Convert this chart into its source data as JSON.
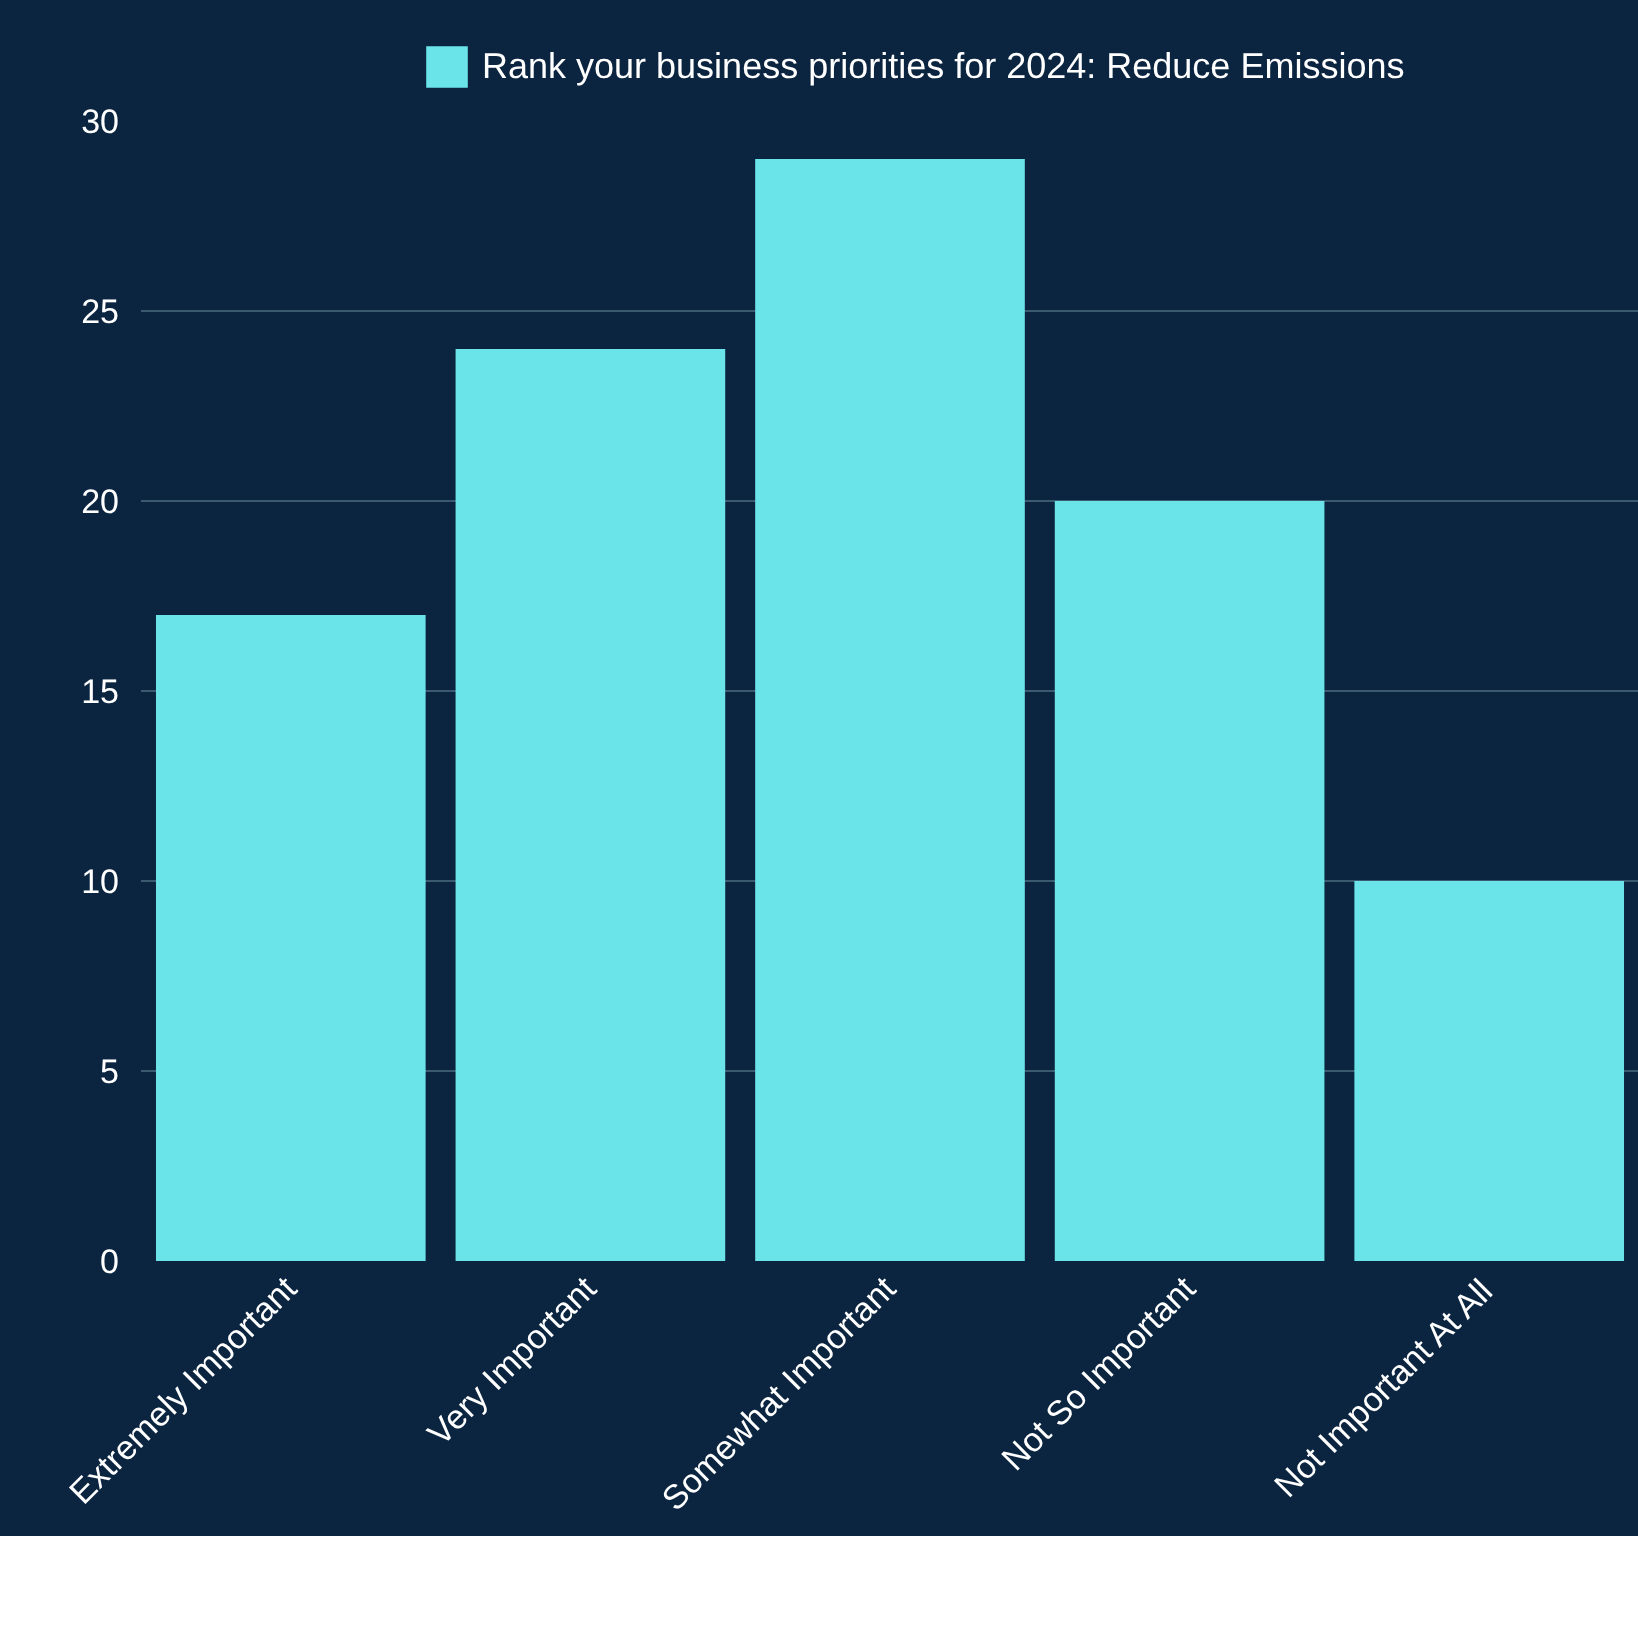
{
  "chart_data": {
    "type": "bar",
    "categories": [
      "Extremely Important",
      "Very Important",
      "Somewhat Important",
      "Not So Important",
      "Not Important At All"
    ],
    "series": [
      {
        "name": "Rank your business priorities for 2024: Reduce Emissions",
        "color": "#6ae4e8",
        "values": [
          17,
          24,
          29,
          20,
          10
        ]
      }
    ],
    "ylim": [
      0,
      30
    ],
    "yticks": [
      0,
      5,
      10,
      15,
      20,
      25,
      30
    ],
    "grid": "y",
    "legend": "top"
  }
}
